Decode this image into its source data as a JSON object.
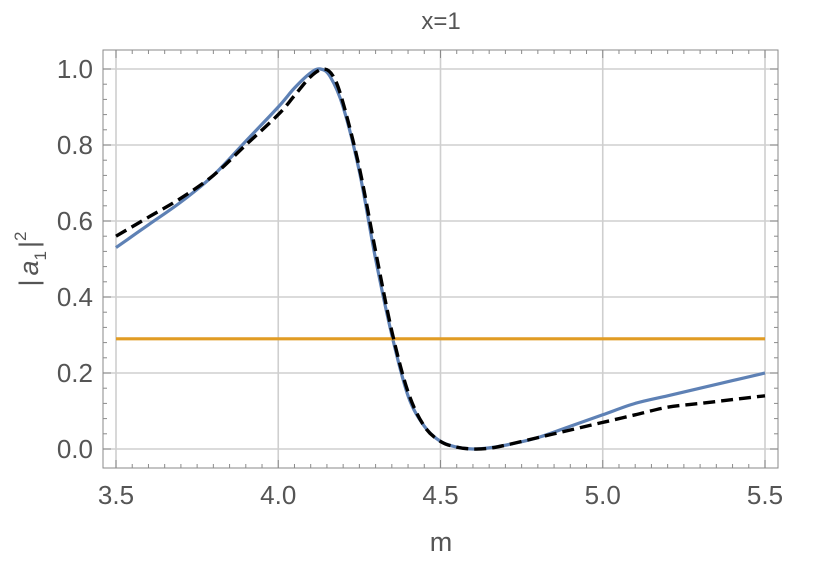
{
  "chart_data": {
    "type": "line",
    "title": "x=1",
    "xlabel": "m",
    "ylabel_parts": {
      "prefix": "|",
      "var": "a",
      "sub": "1",
      "suffix": "|",
      "sup": "2"
    },
    "xlim": [
      3.5,
      5.5
    ],
    "ylim": [
      0.0,
      1.0
    ],
    "x_ticks": [
      "3.5",
      "4.0",
      "4.5",
      "5.0",
      "5.5"
    ],
    "y_ticks": [
      "0.0",
      "0.2",
      "0.4",
      "0.6",
      "0.8",
      "1.0"
    ],
    "grid": true,
    "legend": "none",
    "series": [
      {
        "color": "#5e81b5",
        "style": "solid",
        "points": [
          [
            3.5,
            0.53
          ],
          [
            3.6,
            0.59
          ],
          [
            3.7,
            0.65
          ],
          [
            3.8,
            0.72
          ],
          [
            3.9,
            0.81
          ],
          [
            4.0,
            0.9
          ],
          [
            4.05,
            0.95
          ],
          [
            4.1,
            0.99
          ],
          [
            4.13,
            1.0
          ],
          [
            4.16,
            0.98
          ],
          [
            4.2,
            0.9
          ],
          [
            4.25,
            0.73
          ],
          [
            4.3,
            0.5
          ],
          [
            4.35,
            0.3
          ],
          [
            4.4,
            0.14
          ],
          [
            4.45,
            0.06
          ],
          [
            4.5,
            0.02
          ],
          [
            4.55,
            0.005
          ],
          [
            4.6,
            0.0
          ],
          [
            4.65,
            0.003
          ],
          [
            4.7,
            0.01
          ],
          [
            4.8,
            0.03
          ],
          [
            4.9,
            0.06
          ],
          [
            5.0,
            0.09
          ],
          [
            5.1,
            0.12
          ],
          [
            5.2,
            0.14
          ],
          [
            5.3,
            0.16
          ],
          [
            5.4,
            0.18
          ],
          [
            5.5,
            0.2
          ]
        ]
      },
      {
        "color": "#e19c24",
        "style": "solid",
        "points": [
          [
            3.5,
            0.29
          ],
          [
            5.5,
            0.29
          ]
        ]
      },
      {
        "color": "#000000",
        "style": "dashed",
        "points": [
          [
            3.5,
            0.56
          ],
          [
            3.6,
            0.61
          ],
          [
            3.7,
            0.66
          ],
          [
            3.8,
            0.72
          ],
          [
            3.9,
            0.8
          ],
          [
            4.0,
            0.88
          ],
          [
            4.05,
            0.93
          ],
          [
            4.1,
            0.98
          ],
          [
            4.14,
            1.0
          ],
          [
            4.17,
            0.98
          ],
          [
            4.2,
            0.91
          ],
          [
            4.25,
            0.74
          ],
          [
            4.3,
            0.52
          ],
          [
            4.35,
            0.31
          ],
          [
            4.4,
            0.15
          ],
          [
            4.45,
            0.06
          ],
          [
            4.5,
            0.02
          ],
          [
            4.55,
            0.005
          ],
          [
            4.6,
            0.0
          ],
          [
            4.65,
            0.002
          ],
          [
            4.7,
            0.01
          ],
          [
            4.8,
            0.03
          ],
          [
            4.9,
            0.05
          ],
          [
            5.0,
            0.07
          ],
          [
            5.1,
            0.09
          ],
          [
            5.2,
            0.11
          ],
          [
            5.3,
            0.12
          ],
          [
            5.4,
            0.13
          ],
          [
            5.5,
            0.14
          ]
        ]
      }
    ]
  }
}
